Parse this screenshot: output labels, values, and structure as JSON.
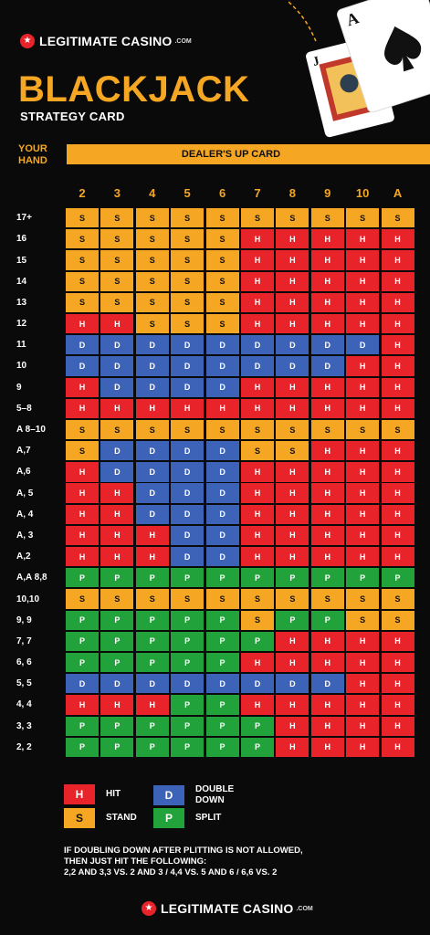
{
  "logo": {
    "name": "LEGITIMATE CASINO",
    "suffix": ".COM"
  },
  "title": "BLACKJACK",
  "subtitle": "STRATEGY CARD",
  "your_hand_label": "YOUR HAND",
  "dealer_label": "DEALER'S UP CARD",
  "columns": [
    "2",
    "3",
    "4",
    "5",
    "6",
    "7",
    "8",
    "9",
    "10",
    "A"
  ],
  "rows": [
    {
      "label": "17+",
      "cells": [
        "S",
        "S",
        "S",
        "S",
        "S",
        "S",
        "S",
        "S",
        "S",
        "S"
      ]
    },
    {
      "label": "16",
      "cells": [
        "S",
        "S",
        "S",
        "S",
        "S",
        "H",
        "H",
        "H",
        "H",
        "H"
      ]
    },
    {
      "label": "15",
      "cells": [
        "S",
        "S",
        "S",
        "S",
        "S",
        "H",
        "H",
        "H",
        "H",
        "H"
      ]
    },
    {
      "label": "14",
      "cells": [
        "S",
        "S",
        "S",
        "S",
        "S",
        "H",
        "H",
        "H",
        "H",
        "H"
      ]
    },
    {
      "label": "13",
      "cells": [
        "S",
        "S",
        "S",
        "S",
        "S",
        "H",
        "H",
        "H",
        "H",
        "H"
      ]
    },
    {
      "label": "12",
      "cells": [
        "H",
        "H",
        "S",
        "S",
        "S",
        "H",
        "H",
        "H",
        "H",
        "H"
      ]
    },
    {
      "label": "11",
      "cells": [
        "D",
        "D",
        "D",
        "D",
        "D",
        "D",
        "D",
        "D",
        "D",
        "H"
      ]
    },
    {
      "label": "10",
      "cells": [
        "D",
        "D",
        "D",
        "D",
        "D",
        "D",
        "D",
        "D",
        "H",
        "H"
      ]
    },
    {
      "label": "9",
      "cells": [
        "H",
        "D",
        "D",
        "D",
        "D",
        "H",
        "H",
        "H",
        "H",
        "H"
      ]
    },
    {
      "label": "5–8",
      "cells": [
        "H",
        "H",
        "H",
        "H",
        "H",
        "H",
        "H",
        "H",
        "H",
        "H"
      ]
    },
    {
      "label": "A 8–10",
      "cells": [
        "S",
        "S",
        "S",
        "S",
        "S",
        "S",
        "S",
        "S",
        "S",
        "S"
      ]
    },
    {
      "label": "A,7",
      "cells": [
        "S",
        "D",
        "D",
        "D",
        "D",
        "S",
        "S",
        "H",
        "H",
        "H"
      ]
    },
    {
      "label": "A,6",
      "cells": [
        "H",
        "D",
        "D",
        "D",
        "D",
        "H",
        "H",
        "H",
        "H",
        "H"
      ]
    },
    {
      "label": "A, 5",
      "cells": [
        "H",
        "H",
        "D",
        "D",
        "D",
        "H",
        "H",
        "H",
        "H",
        "H"
      ]
    },
    {
      "label": "A, 4",
      "cells": [
        "H",
        "H",
        "D",
        "D",
        "D",
        "H",
        "H",
        "H",
        "H",
        "H"
      ]
    },
    {
      "label": "A, 3",
      "cells": [
        "H",
        "H",
        "H",
        "D",
        "D",
        "H",
        "H",
        "H",
        "H",
        "H"
      ]
    },
    {
      "label": "A,2",
      "cells": [
        "H",
        "H",
        "H",
        "D",
        "D",
        "H",
        "H",
        "H",
        "H",
        "H"
      ]
    },
    {
      "label": "A,A 8,8",
      "cells": [
        "P",
        "P",
        "P",
        "P",
        "P",
        "P",
        "P",
        "P",
        "P",
        "P"
      ]
    },
    {
      "label": "10,10",
      "cells": [
        "S",
        "S",
        "S",
        "S",
        "S",
        "S",
        "S",
        "S",
        "S",
        "S"
      ]
    },
    {
      "label": "9, 9",
      "cells": [
        "P",
        "P",
        "P",
        "P",
        "P",
        "S",
        "P",
        "P",
        "S",
        "S"
      ]
    },
    {
      "label": "7, 7",
      "cells": [
        "P",
        "P",
        "P",
        "P",
        "P",
        "P",
        "H",
        "H",
        "H",
        "H"
      ]
    },
    {
      "label": "6, 6",
      "cells": [
        "P",
        "P",
        "P",
        "P",
        "P",
        "H",
        "H",
        "H",
        "H",
        "H"
      ]
    },
    {
      "label": "5, 5",
      "cells": [
        "D",
        "D",
        "D",
        "D",
        "D",
        "D",
        "D",
        "D",
        "H",
        "H"
      ]
    },
    {
      "label": "4, 4",
      "cells": [
        "H",
        "H",
        "H",
        "P",
        "P",
        "H",
        "H",
        "H",
        "H",
        "H"
      ]
    },
    {
      "label": "3, 3",
      "cells": [
        "P",
        "P",
        "P",
        "P",
        "P",
        "P",
        "H",
        "H",
        "H",
        "H"
      ]
    },
    {
      "label": "2, 2",
      "cells": [
        "P",
        "P",
        "P",
        "P",
        "P",
        "P",
        "H",
        "H",
        "H",
        "H"
      ]
    }
  ],
  "legend": {
    "hit": {
      "code": "H",
      "label": "HIT"
    },
    "stand": {
      "code": "S",
      "label": "STAND"
    },
    "double": {
      "code": "D",
      "label": "DOUBLE DOWN"
    },
    "split": {
      "code": "P",
      "label": "SPLIT"
    }
  },
  "note": {
    "line1": "IF DOUBLING DOWN AFTER PLITTING IS NOT ALLOWED,",
    "line2": "THEN JUST HIT THE FOLLOWING:",
    "line3": "2,2 AND 3,3 VS. 2 AND 3 / 4,4 VS. 5 AND 6 / 6,6 VS. 2"
  },
  "playing_cards": {
    "rank_a": "A",
    "rank_j": "J"
  },
  "colors": {
    "hit": "#e8232a",
    "stand": "#f5a623",
    "double": "#3d63b8",
    "split": "#22a23a",
    "accent": "#f5a623"
  }
}
